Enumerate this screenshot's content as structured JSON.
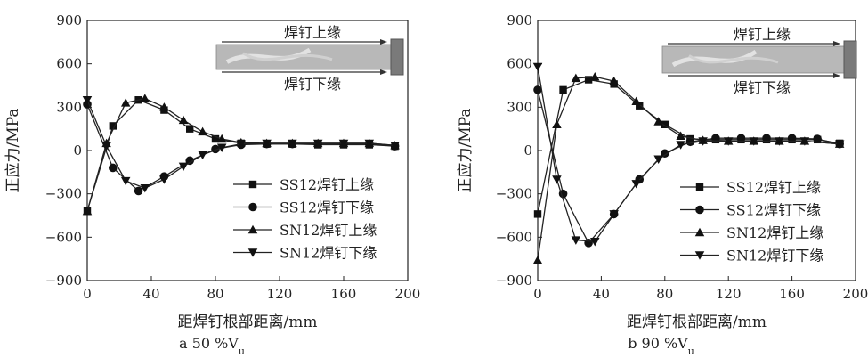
{
  "chart_data": [
    {
      "type": "line",
      "caption": "a 50 %V",
      "caption_sub": "u",
      "xlabel": "距焊钉根部距离/mm",
      "ylabel": "正应力/MPa",
      "xlim": [
        0,
        200
      ],
      "ylim": [
        -900,
        900
      ],
      "xticks": [
        0,
        40,
        80,
        120,
        160,
        200
      ],
      "yticks": [
        -900,
        -600,
        -300,
        0,
        300,
        600,
        900
      ],
      "grid": false,
      "legend_position": "lower-right",
      "inset": {
        "top_label": "焊钉上缘",
        "bottom_label": "焊钉下缘"
      },
      "series": [
        {
          "name": "SS12焊钉上缘",
          "marker": "square",
          "x": [
            0,
            16,
            32,
            48,
            64,
            80,
            96,
            112,
            128,
            144,
            160,
            176,
            192
          ],
          "y": [
            -420,
            170,
            350,
            280,
            150,
            80,
            50,
            45,
            45,
            40,
            40,
            40,
            30
          ]
        },
        {
          "name": "SS12焊钉下缘",
          "marker": "circle",
          "x": [
            0,
            16,
            32,
            48,
            64,
            80,
            96,
            112,
            128,
            144,
            160,
            176,
            192
          ],
          "y": [
            320,
            -120,
            -280,
            -180,
            -70,
            10,
            40,
            45,
            45,
            45,
            45,
            45,
            30
          ]
        },
        {
          "name": "SN12焊钉上缘",
          "marker": "triangle-up",
          "x": [
            0,
            12,
            24,
            36,
            48,
            60,
            72,
            84,
            96,
            112,
            128,
            144,
            160,
            176,
            192
          ],
          "y": [
            -420,
            50,
            330,
            360,
            300,
            210,
            130,
            80,
            55,
            50,
            50,
            50,
            50,
            50,
            35
          ]
        },
        {
          "name": "SN12焊钉下缘",
          "marker": "triangle-down",
          "x": [
            0,
            12,
            24,
            36,
            48,
            60,
            72,
            84,
            96,
            112,
            128,
            144,
            160,
            176,
            192
          ],
          "y": [
            350,
            30,
            -210,
            -260,
            -200,
            -110,
            -30,
            20,
            45,
            50,
            50,
            50,
            50,
            50,
            35
          ]
        }
      ]
    },
    {
      "type": "line",
      "caption": "b 90 %V",
      "caption_sub": "u",
      "xlabel": "距焊钉根部距离/mm",
      "ylabel": "正应力/MPa",
      "xlim": [
        0,
        200
      ],
      "ylim": [
        -900,
        900
      ],
      "xticks": [
        0,
        40,
        80,
        120,
        160,
        200
      ],
      "yticks": [
        -900,
        -600,
        -300,
        0,
        300,
        600,
        900
      ],
      "grid": false,
      "legend_position": "lower-right",
      "inset": {
        "top_label": "焊钉上缘",
        "bottom_label": "焊钉下缘"
      },
      "series": [
        {
          "name": "SS12焊钉上缘",
          "marker": "square",
          "x": [
            0,
            16,
            32,
            48,
            64,
            80,
            96,
            112,
            128,
            144,
            160,
            176,
            190
          ],
          "y": [
            -440,
            420,
            490,
            460,
            310,
            180,
            80,
            75,
            75,
            75,
            75,
            75,
            50
          ]
        },
        {
          "name": "SS12焊钉下缘",
          "marker": "circle",
          "x": [
            0,
            16,
            32,
            48,
            64,
            80,
            96,
            112,
            128,
            144,
            160,
            176,
            190
          ],
          "y": [
            420,
            -300,
            -640,
            -440,
            -200,
            -20,
            60,
            85,
            85,
            85,
            85,
            80,
            45
          ]
        },
        {
          "name": "SN12焊钉上缘",
          "marker": "triangle-up",
          "x": [
            0,
            12,
            24,
            36,
            48,
            62,
            76,
            90,
            104,
            120,
            136,
            152,
            168,
            190
          ],
          "y": [
            -760,
            180,
            500,
            510,
            480,
            340,
            200,
            100,
            70,
            65,
            65,
            65,
            65,
            45
          ]
        },
        {
          "name": "SN12焊钉下缘",
          "marker": "triangle-down",
          "x": [
            0,
            12,
            24,
            36,
            48,
            62,
            76,
            90,
            104,
            120,
            136,
            152,
            168,
            190
          ],
          "y": [
            580,
            -200,
            -620,
            -630,
            -440,
            -230,
            -60,
            40,
            65,
            65,
            65,
            65,
            65,
            45
          ]
        }
      ]
    }
  ]
}
